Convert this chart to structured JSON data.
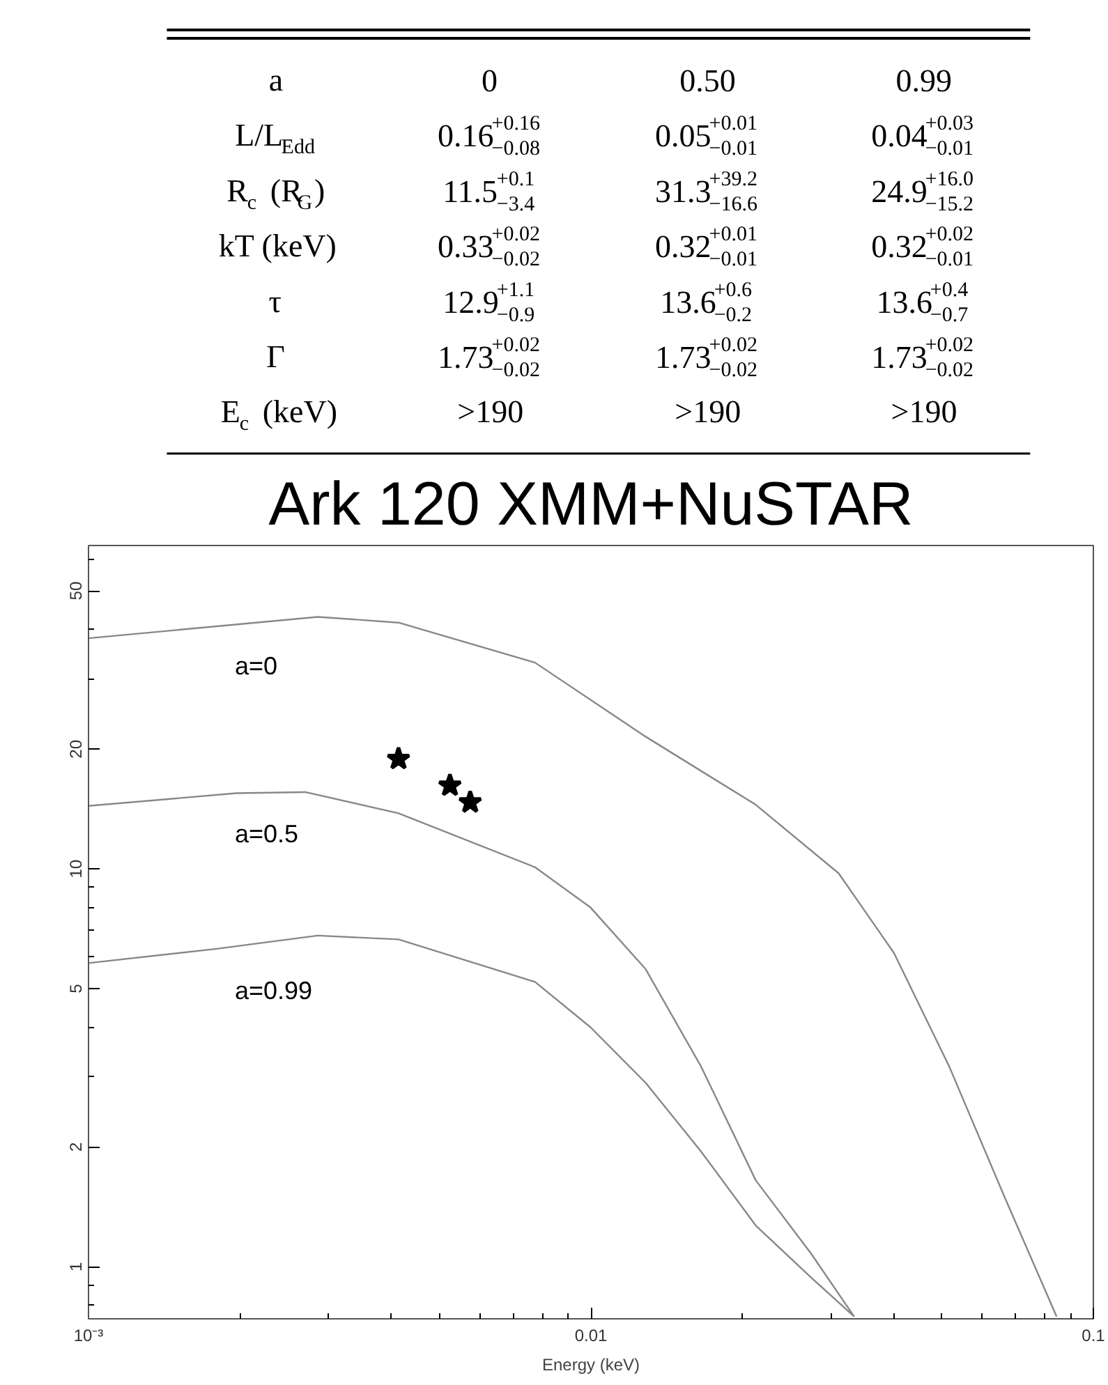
{
  "chart_data": [
    {
      "type": "other",
      "annotations": [
        "a",
        "0",
        "0.50",
        "0.99",
        "L/L$_{Edd}$",
        "0.16$^{+0.16}$$_{−0.08}$",
        "0.05$^{+0.01}$$_{−0.01}$",
        "0.04$^{+0.03}$$_{−0.01}$",
        "R$_{c}$ (R$_{G}$)",
        "11.5$^{+0.1}$$_{−3.4}$",
        "31.3$^{+39.2}$$_{−16.6}$",
        "24.9$^{+16.0}$$_{−15.2}$",
        "kT (keV)",
        "0.33$^{+0.02}$$_{−0.02}$",
        "0.32$^{+0.01}$$_{−0.01}$",
        "0.32$^{+0.02}$$_{−0.01}$",
        "τ",
        "12.9$^{+1.1}$$_{−0.9}$",
        "13.6$^{+0.6}$$_{−0.2}$",
        "13.6$^{+0.4}$$_{−0.7}$",
        "Γ",
        "1.73$^{+0.02}$$_{−0.02}$",
        "1.73$^{+0.02}$$_{−0.02}$",
        "1.73$^{+0.02}$$_{−0.02}$",
        "E$_{c}$ (keV)",
        ">190",
        ">190",
        ">190"
      ]
    },
    {
      "type": "line",
      "title": "Ark 120 XMM+NuSTAR",
      "xlabel": "Energy (keV)",
      "log": "xy",
      "xlim": [
        0.001,
        0.1
      ],
      "ylim": [
        0.74,
        65
      ],
      "xticks": [
        {
          "value": 0.001,
          "label": "10⁻³"
        },
        {
          "value": 0.002,
          "label": null
        },
        {
          "value": 0.003,
          "label": null
        },
        {
          "value": 0.004,
          "label": null
        },
        {
          "value": 0.005,
          "label": null
        },
        {
          "value": 0.006,
          "label": null
        },
        {
          "value": 0.007,
          "label": null
        },
        {
          "value": 0.008,
          "label": null
        },
        {
          "value": 0.009,
          "label": null
        },
        0.01,
        {
          "value": 0.02,
          "label": null
        },
        {
          "value": 0.03,
          "label": null
        },
        {
          "value": 0.04,
          "label": null
        },
        {
          "value": 0.05,
          "label": null
        },
        {
          "value": 0.06,
          "label": null
        },
        {
          "value": 0.07,
          "label": null
        },
        {
          "value": 0.08,
          "label": null
        },
        {
          "value": 0.09,
          "label": null
        },
        0.1
      ],
      "yticks": [
        {
          "value": 0.8,
          "label": null
        },
        {
          "value": 0.9,
          "label": null
        },
        1,
        2,
        {
          "value": 3,
          "label": null
        },
        {
          "value": 4,
          "label": null
        },
        5,
        {
          "value": 6,
          "label": null
        },
        {
          "value": 7,
          "label": null
        },
        {
          "value": 8,
          "label": null
        },
        {
          "value": 9,
          "label": null
        },
        10,
        20,
        {
          "value": 30,
          "label": null
        },
        {
          "value": 40,
          "label": null
        },
        50,
        {
          "value": 60,
          "label": null
        }
      ],
      "series": [
        {
          "name": "a=0",
          "type": "line",
          "color": "#888888",
          "marker": "none",
          "x": [
            0.001,
            0.00286,
            0.00414,
            0.00774,
            0.01285,
            0.02128,
            0.03112,
            0.04009,
            0.05164,
            0.06653,
            0.0845
          ],
          "values": [
            38,
            43,
            41.6,
            33.0,
            21.5,
            14.5,
            9.75,
            6.15,
            3.19,
            1.5,
            0.75
          ]
        },
        {
          "name": "a=0.5",
          "type": "line",
          "color": "#888888",
          "marker": "none",
          "x": [
            0.001,
            0.00197,
            0.0027,
            0.00414,
            0.00774,
            0.00998,
            0.01285,
            0.01656,
            0.02128,
            0.02742,
            0.0334
          ],
          "values": [
            14.4,
            15.5,
            15.6,
            13.8,
            10.1,
            8.0,
            5.6,
            3.19,
            1.65,
            1.08,
            0.75
          ]
        },
        {
          "name": "a=0.99",
          "type": "line",
          "color": "#888888",
          "marker": "none",
          "x": [
            0.001,
            0.0018,
            0.00286,
            0.00414,
            0.00774,
            0.00998,
            0.01285,
            0.01656,
            0.02128,
            0.02742,
            0.0334
          ],
          "values": [
            5.8,
            6.3,
            6.8,
            6.65,
            5.2,
            4.0,
            2.9,
            1.95,
            1.27,
            0.94,
            0.75
          ]
        },
        {
          "type": "scatter",
          "color": "#000000",
          "marker": "star",
          "x": [
            0.00414,
            0.00524,
            0.00575
          ],
          "values": [
            18.9,
            16.2,
            14.7
          ]
        }
      ]
    }
  ]
}
